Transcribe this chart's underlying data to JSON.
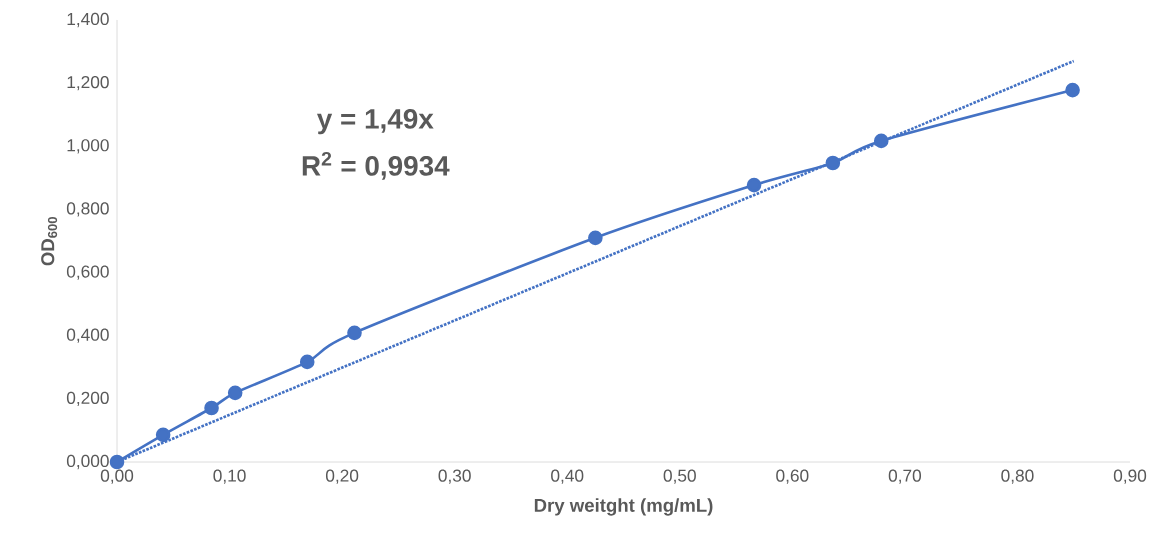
{
  "chart_data": {
    "type": "line",
    "xlabel": "Dry weitght (mg/mL)",
    "ylabel": "OD$_{600}$",
    "xlim": [
      0,
      0.9
    ],
    "ylim": [
      0,
      1.4
    ],
    "xticks": [
      {
        "value": 0,
        "label": "0,00"
      },
      {
        "value": 0.1,
        "label": "0,10"
      },
      {
        "value": 0.2,
        "label": "0,20"
      },
      {
        "value": 0.3,
        "label": "0,30"
      },
      {
        "value": 0.4,
        "label": "0,40"
      },
      {
        "value": 0.5,
        "label": "0,50"
      },
      {
        "value": 0.6,
        "label": "0,60"
      },
      {
        "value": 0.7,
        "label": "0,70"
      },
      {
        "value": 0.8,
        "label": "0,80"
      },
      {
        "value": 0.9,
        "label": "0,90"
      }
    ],
    "yticks": [
      {
        "value": 0,
        "label": "0,000"
      },
      {
        "value": 0.2,
        "label": "0,200"
      },
      {
        "value": 0.4,
        "label": "0,400"
      },
      {
        "value": 0.6,
        "label": "0,600"
      },
      {
        "value": 0.8,
        "label": "0,800"
      },
      {
        "value": 1.0,
        "label": "1,000"
      },
      {
        "value": 1.2,
        "label": "1,200"
      },
      {
        "value": 1.4,
        "label": "1,400"
      }
    ],
    "series": [
      {
        "color": "#4472c4",
        "marker": "circle",
        "line_style": "solid",
        "x": [
          0,
          0.041,
          0.084,
          0.105,
          0.169,
          0.211,
          0.425,
          0.566,
          0.636,
          0.679,
          0.849
        ],
        "values": [
          0,
          0.086,
          0.171,
          0.219,
          0.317,
          0.409,
          0.71,
          0.877,
          0.947,
          1.017,
          1.178
        ]
      },
      {
        "type": "line",
        "color": "#4472c4",
        "marker": "none",
        "line_style": "dotted",
        "x": [
          0,
          0.85
        ],
        "values": [
          0,
          1.27
        ]
      }
    ],
    "annotations": [
      "y = 1,49x",
      "R$^{2}$ = 0,9934"
    ]
  }
}
